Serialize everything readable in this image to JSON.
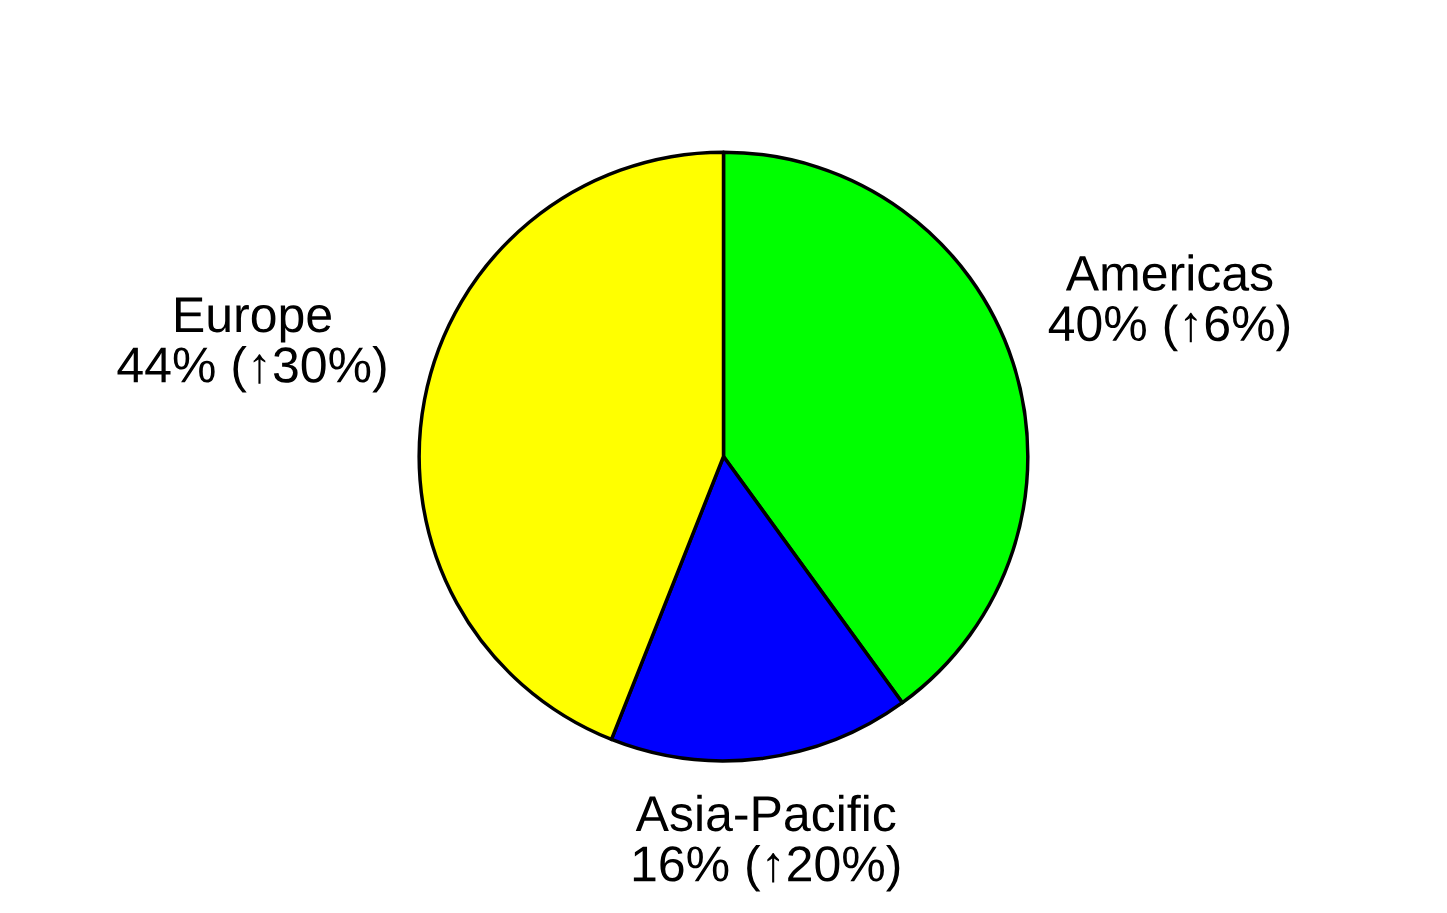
{
  "chart_data": {
    "type": "pie",
    "categories": [
      "Americas",
      "Asia-Pacific",
      "Europe"
    ],
    "values": [
      40,
      16,
      44
    ],
    "colors": [
      "#00ff00",
      "#0000ff",
      "#ffff00"
    ],
    "value_labels": [
      "40% (↑6%)",
      "16% (↑20%)",
      "44% (↑30%)"
    ]
  }
}
